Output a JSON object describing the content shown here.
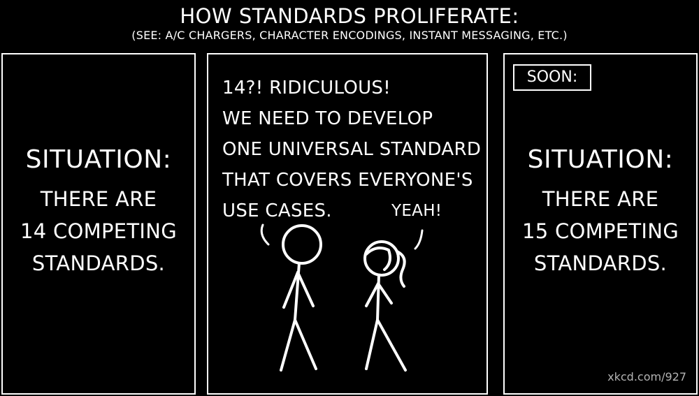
{
  "header": {
    "title": "HOW STANDARDS PROLIFERATE:",
    "subtitle": "(SEE: A/C CHARGERS, CHARACTER ENCODINGS, INSTANT MESSAGING, ETC.)"
  },
  "panels": {
    "left": {
      "situation_label": "SITUATION:",
      "lines": [
        "THERE ARE",
        "14 COMPETING",
        "STANDARDS."
      ]
    },
    "middle": {
      "speech_lines": [
        "14?! RIDICULOUS!",
        "WE NEED TO DEVELOP",
        "ONE UNIVERSAL STANDARD",
        "THAT COVERS EVERYONE'S",
        "USE CASES."
      ],
      "reply": "YEAH!"
    },
    "right": {
      "soon_label": "SOON:",
      "situation_label": "SITUATION:",
      "lines": [
        "THERE ARE",
        "15 COMPETING",
        "STANDARDS."
      ]
    }
  },
  "footer": {
    "credit": "xkcd.com/927"
  },
  "colors": {
    "background": "#000000",
    "foreground": "#ffffff",
    "credit": "#b3b3b3"
  }
}
